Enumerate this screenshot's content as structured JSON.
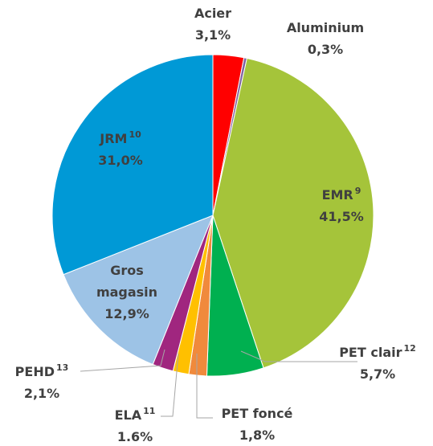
{
  "chart_data": {
    "type": "pie",
    "categories": [
      "Acier",
      "Aluminium",
      "EMR",
      "PET clair",
      "PET foncé",
      "ELA",
      "PEHD",
      "Gros magasin",
      "JRM"
    ],
    "superscripts": [
      null,
      null,
      "9",
      "12",
      null,
      "11",
      "13",
      null,
      "10"
    ],
    "values": [
      3.1,
      0.3,
      41.5,
      5.7,
      1.8,
      1.6,
      2.1,
      12.9,
      31.0
    ],
    "value_labels": [
      "3,1%",
      "0,3%",
      "41,5%",
      "5,7%",
      "1,8%",
      "1.6%",
      "2,1%",
      "12,9%",
      "31,0%"
    ],
    "colors": [
      "#ff0000",
      "#8064a2",
      "#a5c43a",
      "#00b050",
      "#f08a3c",
      "#ffc000",
      "#a0267f",
      "#9dc3e6",
      "#0099d6"
    ]
  }
}
